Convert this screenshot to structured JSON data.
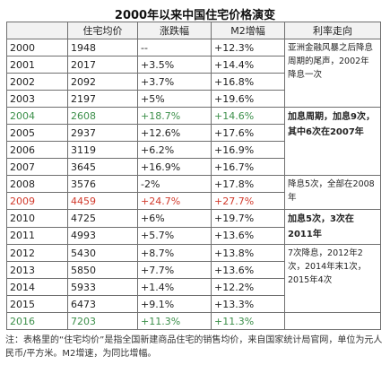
{
  "title": "2000年以来中国住宅价格演变",
  "headers": [
    "",
    "住宅均价",
    "涨跌幅",
    "M2增幅",
    "利率走向"
  ],
  "rows": [
    {
      "year": "2000",
      "price": "1948",
      "change": "--",
      "m2": "+12.3%"
    },
    {
      "year": "2001",
      "price": "2017",
      "change": "+3.5%",
      "m2": "+14.4%"
    },
    {
      "year": "2002",
      "price": "2092",
      "change": "+3.7%",
      "m2": "+16.8%"
    },
    {
      "year": "2003",
      "price": "2197",
      "change": "+5%",
      "m2": "+19.6%"
    },
    {
      "year": "2004",
      "price": "2608",
      "change": "+18.7%",
      "m2": "+14.6%"
    },
    {
      "year": "2005",
      "price": "2937",
      "change": "+12.6%",
      "m2": "+17.6%"
    },
    {
      "year": "2006",
      "price": "3119",
      "change": "+6.2%",
      "m2": "+16.9%"
    },
    {
      "year": "2007",
      "price": "3645",
      "change": "+16.9%",
      "m2": "+16.7%"
    },
    {
      "year": "2008",
      "price": "3576",
      "change": "-2%",
      "m2": "+17.8%"
    },
    {
      "year": "2009",
      "price": "4459",
      "change": "+24.7%",
      "m2": "+27.7%"
    },
    {
      "year": "2010",
      "price": "4725",
      "change": "+6%",
      "m2": "+19.7%"
    },
    {
      "year": "2011",
      "price": "4993",
      "change": "+5.7%",
      "m2": "+13.6%"
    },
    {
      "year": "2012",
      "price": "5430",
      "change": "+8.7%",
      "m2": "+13.8%"
    },
    {
      "year": "2013",
      "price": "5850",
      "change": "+7.7%",
      "m2": "+13.6%"
    },
    {
      "year": "2014",
      "price": "5933",
      "change": "+1.4%",
      "m2": "+12.2%"
    },
    {
      "year": "2015",
      "price": "6473",
      "change": "+9.1%",
      "m2": "+13.3%"
    },
    {
      "year": "2016",
      "price": "7203",
      "change": "+11.3%",
      "m2": "+11.3%"
    }
  ],
  "notes": [
    "亚洲金融风暴之后降息周期的尾声，2002年降息一次",
    "加息周期，加息9次，其中6次在2007年",
    "降息5次，全部在2008年",
    "加息5次，3次在2011年",
    "7次降息，2012年2次，2014年末1次，2015年4次"
  ],
  "footnote": "注：表格里的“住宅均价”是指全国新建商品住宅的销售均价，来自国家统计局官网，单位为元人民币/平方米。M2增速，为同比增幅。",
  "colors": {
    "highlight_green": "#3c8f4a",
    "highlight_red": "#d23a2c"
  }
}
